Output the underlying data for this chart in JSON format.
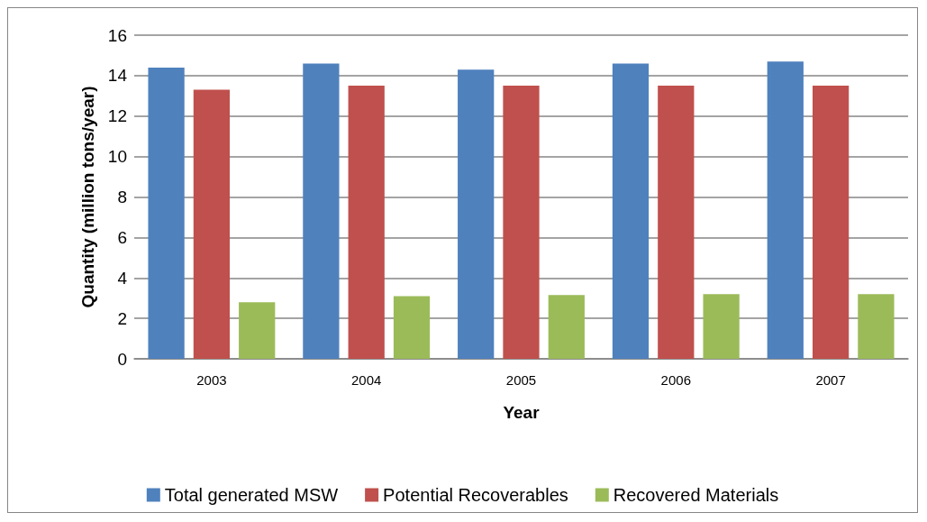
{
  "chart_data": {
    "type": "bar",
    "xlabel": "Year",
    "ylabel": "Quantity (million tons/year)",
    "categories": [
      "2003",
      "2004",
      "2005",
      "2006",
      "2007"
    ],
    "series": [
      {
        "name": "Total generated MSW",
        "color": "#4f81bd",
        "values": [
          14.4,
          14.6,
          14.3,
          14.6,
          14.7
        ]
      },
      {
        "name": "Potential Recoverables",
        "color": "#c0504d",
        "values": [
          13.3,
          13.5,
          13.5,
          13.5,
          13.5
        ]
      },
      {
        "name": "Recovered Materials",
        "color": "#9bbb59",
        "values": [
          2.8,
          3.1,
          3.15,
          3.2,
          3.2
        ]
      }
    ],
    "ylim": [
      0,
      16
    ],
    "yticks": [
      0,
      2,
      4,
      6,
      8,
      10,
      12,
      14,
      16
    ],
    "grid": "y",
    "legend": "bottom"
  }
}
